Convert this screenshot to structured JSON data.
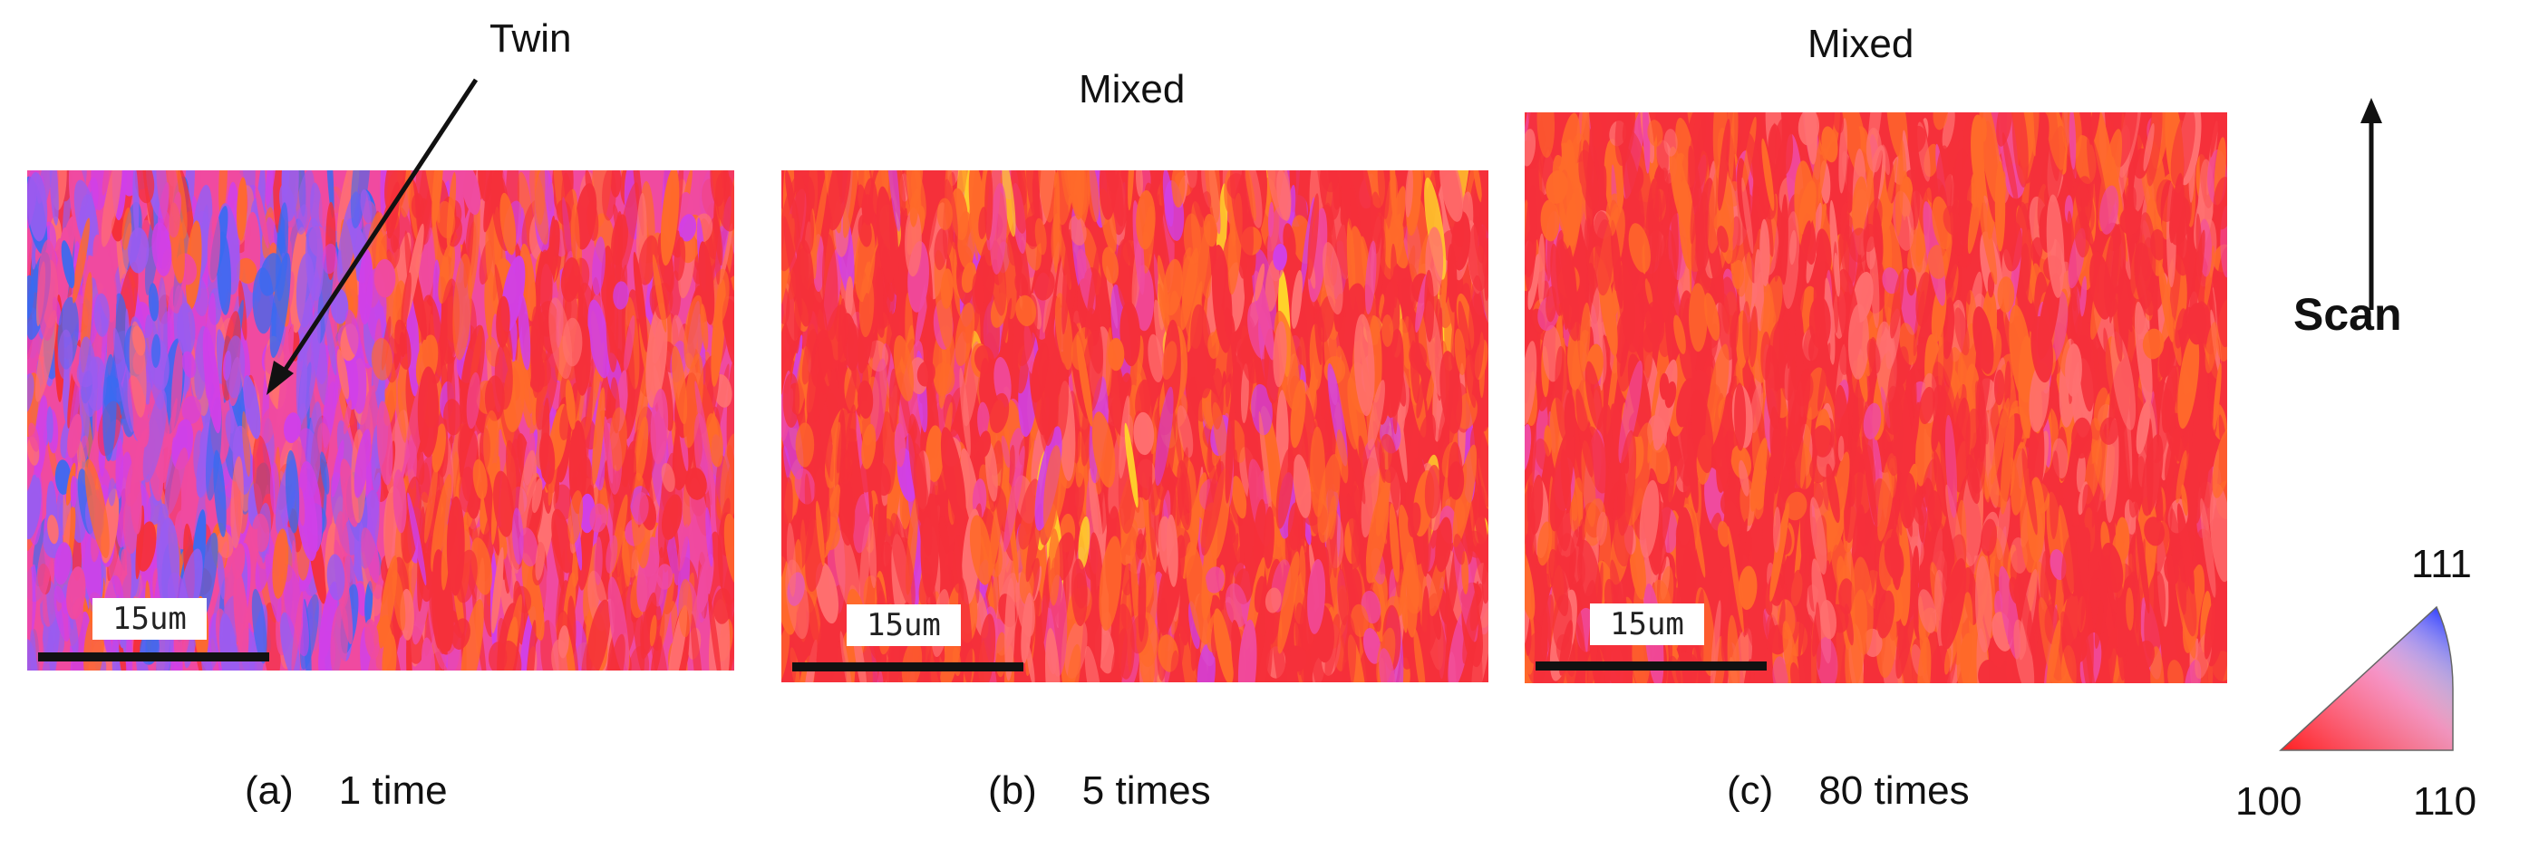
{
  "panels": [
    {
      "id": "a",
      "tag": "(a)",
      "caption": "1 time",
      "scale_label": "15um",
      "annotation": "Twin"
    },
    {
      "id": "b",
      "tag": "(b)",
      "caption": "5 times",
      "scale_label": "15um",
      "annotation": "Mixed"
    },
    {
      "id": "c",
      "tag": "(c)",
      "caption": "80 times",
      "scale_label": "15um",
      "annotation": "Mixed"
    }
  ],
  "scan_direction": {
    "label": "Scan",
    "icon": "up-arrow-icon"
  },
  "ipf_key": {
    "top": "111",
    "left": "100",
    "right": "110",
    "colors": {
      "100": "#ff2020",
      "110": "#20c040",
      "111": "#2040ff"
    }
  },
  "palette": {
    "red": "#f5303a",
    "orange": "#ff6a2a",
    "pink": "#f04aa0",
    "magenta": "#d040e8",
    "violet": "#9a5cf0",
    "blue": "#3a6af0",
    "yellow": "#ffd82a",
    "salmon": "#ff7070"
  }
}
